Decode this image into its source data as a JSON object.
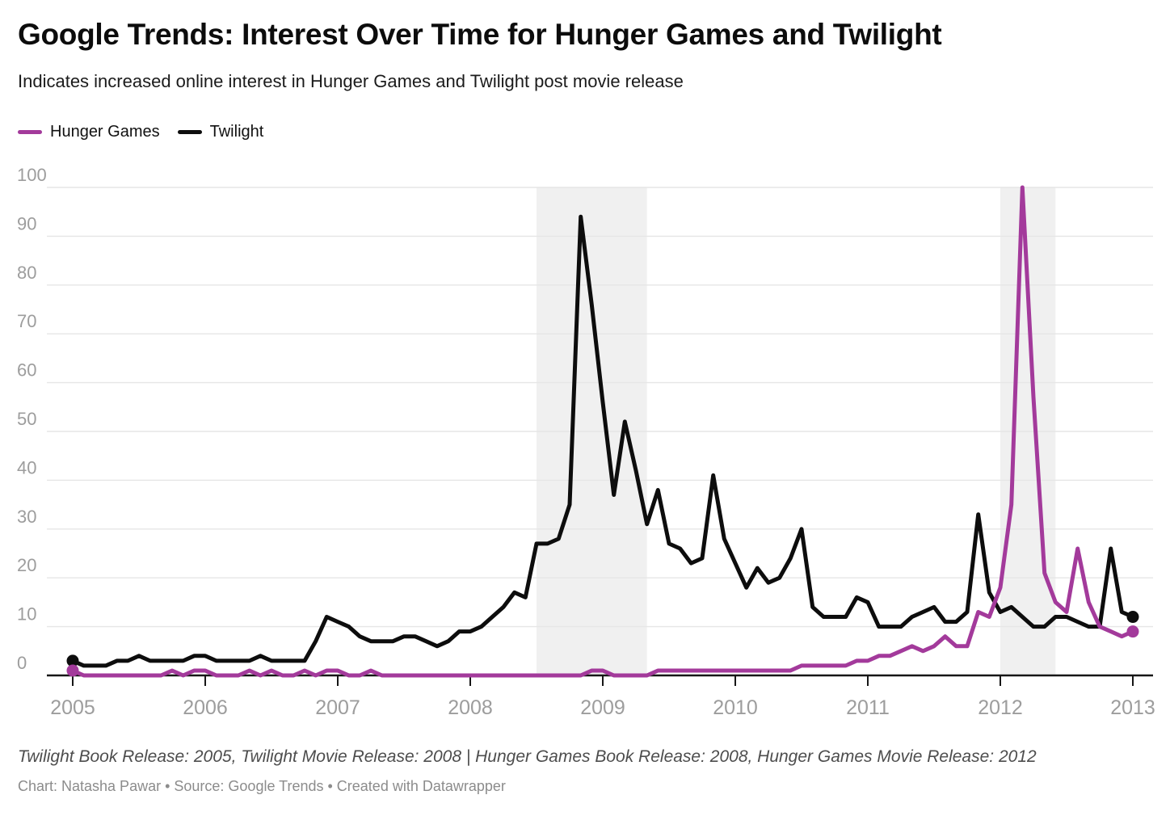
{
  "header": {
    "title": "Google Trends: Interest Over Time for Hunger Games and Twilight",
    "subtitle": "Indicates increased online interest in Hunger Games and Twilight post movie release"
  },
  "legend": [
    {
      "label": "Hunger Games",
      "color": "#a33a9b"
    },
    {
      "label": "Twilight",
      "color": "#0d0d0d"
    }
  ],
  "chart_data": {
    "type": "line",
    "title": "Google Trends: Interest Over Time for Hunger Games and Twilight",
    "x_start": "2005-01",
    "x_end": "2013-01",
    "x_interval": "monthly",
    "x_tick_labels": [
      "2005",
      "2006",
      "2007",
      "2008",
      "2009",
      "2010",
      "2011",
      "2012",
      "2013"
    ],
    "y_ticks": [
      0,
      10,
      20,
      30,
      40,
      50,
      60,
      70,
      80,
      90,
      100
    ],
    "ylim": [
      0,
      100
    ],
    "grid": "horizontal",
    "band_color": "#f0f0f0",
    "grid_color": "#e6e6e6",
    "axis_color": "#161616",
    "tick_label_color": "#9d9d9d",
    "shaded_periods": [
      {
        "from": "2008-07",
        "to": "2009-05"
      },
      {
        "from": "2012-01",
        "to": "2012-06"
      }
    ],
    "series": [
      {
        "name": "Hunger Games",
        "color": "#a33a9b",
        "values": [
          1,
          0,
          0,
          0,
          0,
          0,
          0,
          0,
          0,
          1,
          0,
          1,
          1,
          0,
          0,
          0,
          1,
          0,
          1,
          0,
          0,
          1,
          0,
          1,
          1,
          0,
          0,
          1,
          0,
          0,
          0,
          0,
          0,
          0,
          0,
          0,
          0,
          0,
          0,
          0,
          0,
          0,
          0,
          0,
          0,
          0,
          0,
          1,
          1,
          0,
          0,
          0,
          0,
          1,
          1,
          1,
          1,
          1,
          1,
          1,
          1,
          1,
          1,
          1,
          1,
          1,
          2,
          2,
          2,
          2,
          2,
          3,
          3,
          4,
          4,
          5,
          6,
          5,
          6,
          8,
          6,
          6,
          13,
          12,
          18,
          35,
          100,
          57,
          21,
          15,
          13,
          26,
          15,
          10,
          9,
          8,
          9
        ]
      },
      {
        "name": "Twilight",
        "color": "#0d0d0d",
        "values": [
          3,
          2,
          2,
          2,
          3,
          3,
          4,
          3,
          3,
          3,
          3,
          4,
          4,
          3,
          3,
          3,
          3,
          4,
          3,
          3,
          3,
          3,
          7,
          12,
          11,
          10,
          8,
          7,
          7,
          7,
          8,
          8,
          7,
          6,
          7,
          9,
          9,
          10,
          12,
          14,
          17,
          16,
          27,
          27,
          28,
          35,
          94,
          76,
          56,
          37,
          52,
          42,
          31,
          38,
          27,
          26,
          23,
          24,
          41,
          28,
          23,
          18,
          22,
          19,
          20,
          24,
          30,
          14,
          12,
          12,
          12,
          16,
          15,
          10,
          10,
          10,
          12,
          13,
          14,
          11,
          11,
          13,
          33,
          17,
          13,
          14,
          12,
          10,
          10,
          12,
          12,
          11,
          10,
          10,
          26,
          13,
          12
        ]
      }
    ]
  },
  "footer": {
    "note": "Twilight Book Release: 2005, Twilight Movie Release: 2008 | Hunger Games Book Release: 2008, Hunger Games Movie Release: 2012",
    "credit": "Chart: Natasha Pawar • Source: Google Trends • Created with Datawrapper"
  }
}
